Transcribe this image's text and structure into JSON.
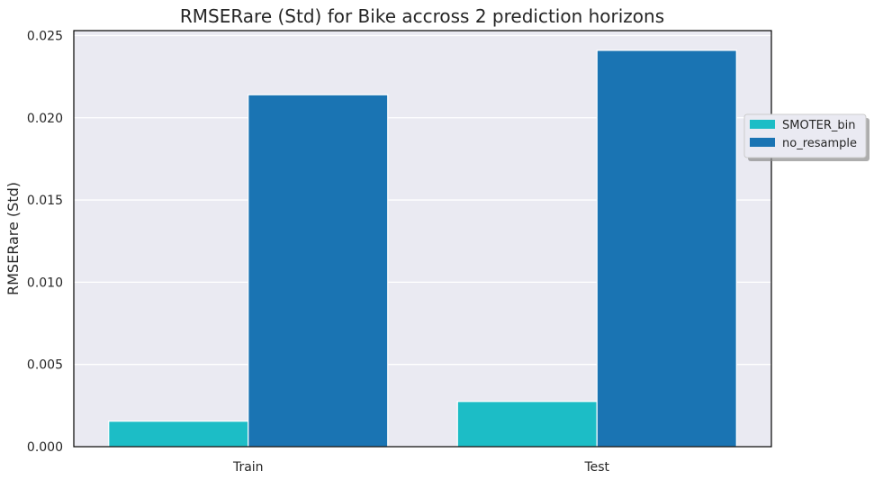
{
  "chart_data": {
    "type": "bar",
    "title": "RMSERare (Std) for Bike accross 2 prediction horizons",
    "xlabel": "",
    "ylabel": "RMSERare (Std)",
    "categories": [
      "Train",
      "Test"
    ],
    "series": [
      {
        "name": "SMOTER_bin",
        "color": "#1cbdc6",
        "values": [
          0.00155,
          0.00275
        ]
      },
      {
        "name": "no_resample",
        "color": "#1a74b3",
        "values": [
          0.0214,
          0.0241
        ]
      }
    ],
    "ylim": [
      0,
      0.0253
    ],
    "yticks": [
      "0.000",
      "0.005",
      "0.010",
      "0.015",
      "0.020",
      "0.025"
    ],
    "grid": true,
    "legend_position": "right, outside plot"
  }
}
